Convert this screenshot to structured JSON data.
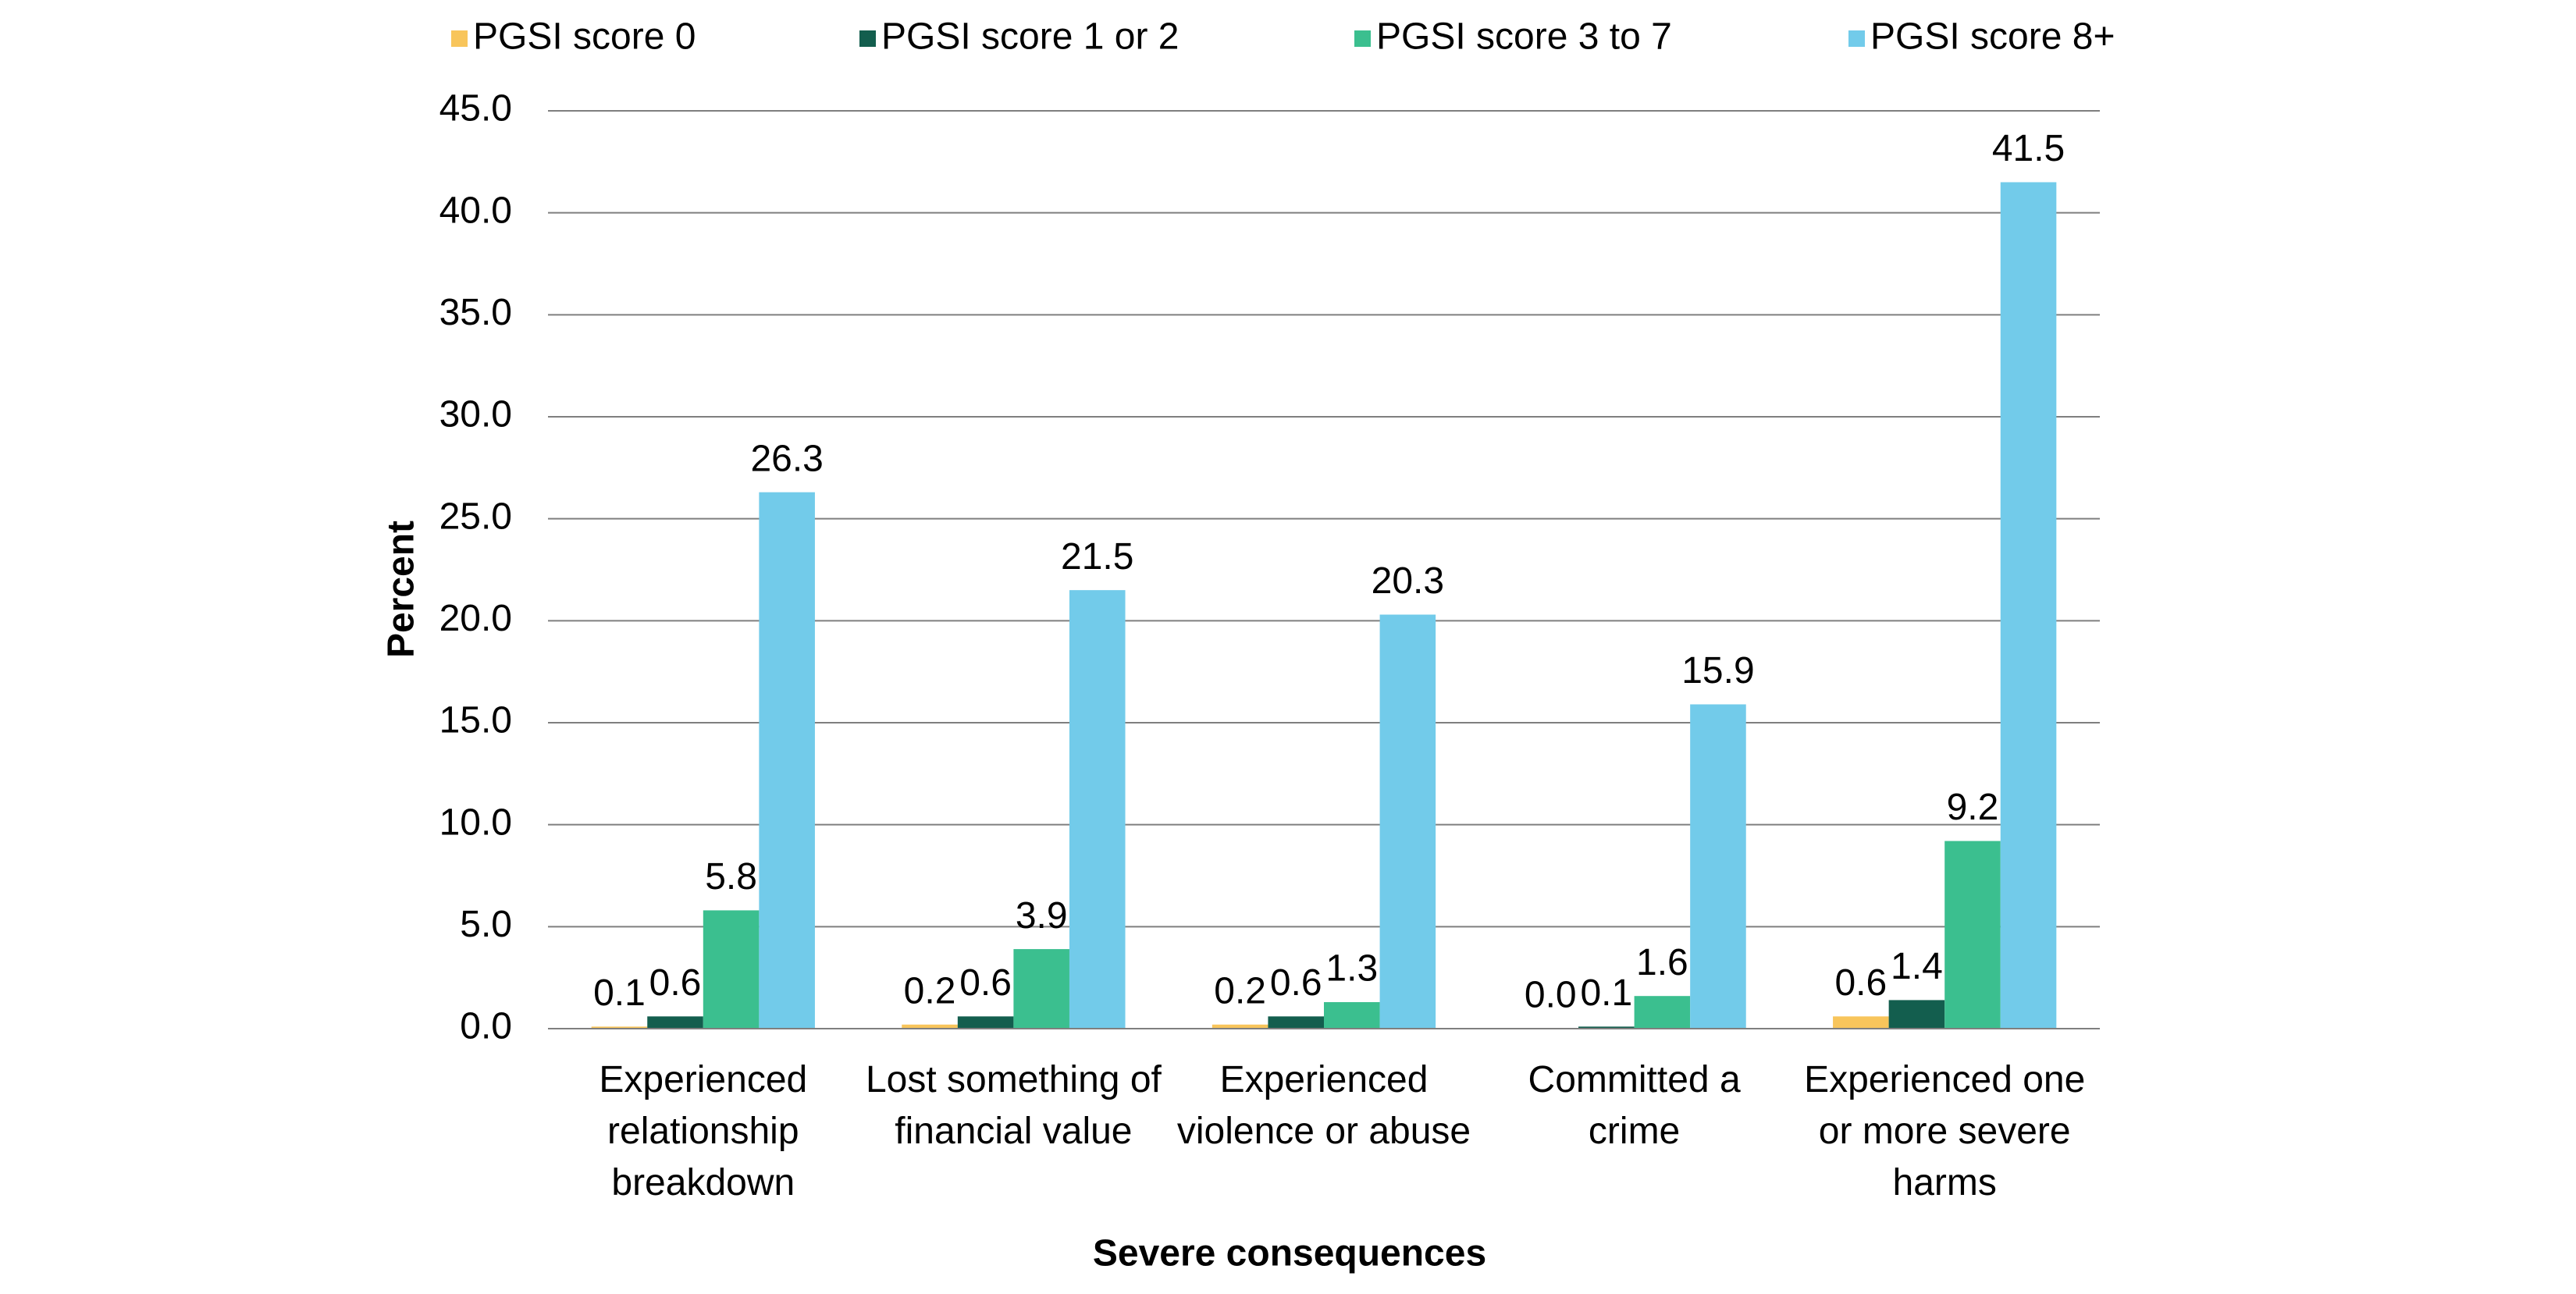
{
  "chart_data": {
    "type": "bar",
    "x_label": "Severe consequences",
    "y_label": "Percent",
    "categories": [
      "Experienced relationship breakdown",
      "Lost something of financial value",
      "Experienced violence or abuse",
      "Committed a crime",
      "Experienced one or more severe harms"
    ],
    "series": [
      {
        "name": "PGSI score 0",
        "color": "#f8c55b",
        "values": [
          0.1,
          0.2,
          0.2,
          0.0,
          0.6
        ],
        "value_labels": [
          "0.1",
          "0.2",
          "0.2",
          "0.0",
          "0.6"
        ]
      },
      {
        "name": "PGSI score 1 or 2",
        "color": "#135e4e",
        "values": [
          0.6,
          0.6,
          0.6,
          0.1,
          1.4
        ],
        "value_labels": [
          "0.6",
          "0.6",
          "0.6",
          "0.1",
          "1.4"
        ]
      },
      {
        "name": "PGSI score 3 to 7",
        "color": "#3bbf8f",
        "values": [
          5.8,
          3.9,
          1.3,
          1.6,
          9.2
        ],
        "value_labels": [
          "5.8",
          "3.9",
          "1.3",
          "1.6",
          "9.2"
        ]
      },
      {
        "name": "PGSI score 8+",
        "color": "#72cbea",
        "values": [
          26.3,
          21.5,
          20.3,
          15.9,
          41.5
        ],
        "value_labels": [
          "26.3",
          "21.5",
          "20.3",
          "15.9",
          "41.5"
        ]
      }
    ],
    "ylim": [
      0,
      45
    ],
    "yticks": [
      {
        "value": 0,
        "label": "0.0"
      },
      {
        "value": 5,
        "label": "5.0"
      },
      {
        "value": 10,
        "label": "10.0"
      },
      {
        "value": 15,
        "label": "15.0"
      },
      {
        "value": 20,
        "label": "20.0"
      },
      {
        "value": 25,
        "label": "25.0"
      },
      {
        "value": 30,
        "label": "30.0"
      },
      {
        "value": 35,
        "label": "35.0"
      },
      {
        "value": 40,
        "label": "40.0"
      },
      {
        "value": 45,
        "label": "45.0"
      }
    ],
    "grid": true,
    "legend": "top"
  }
}
